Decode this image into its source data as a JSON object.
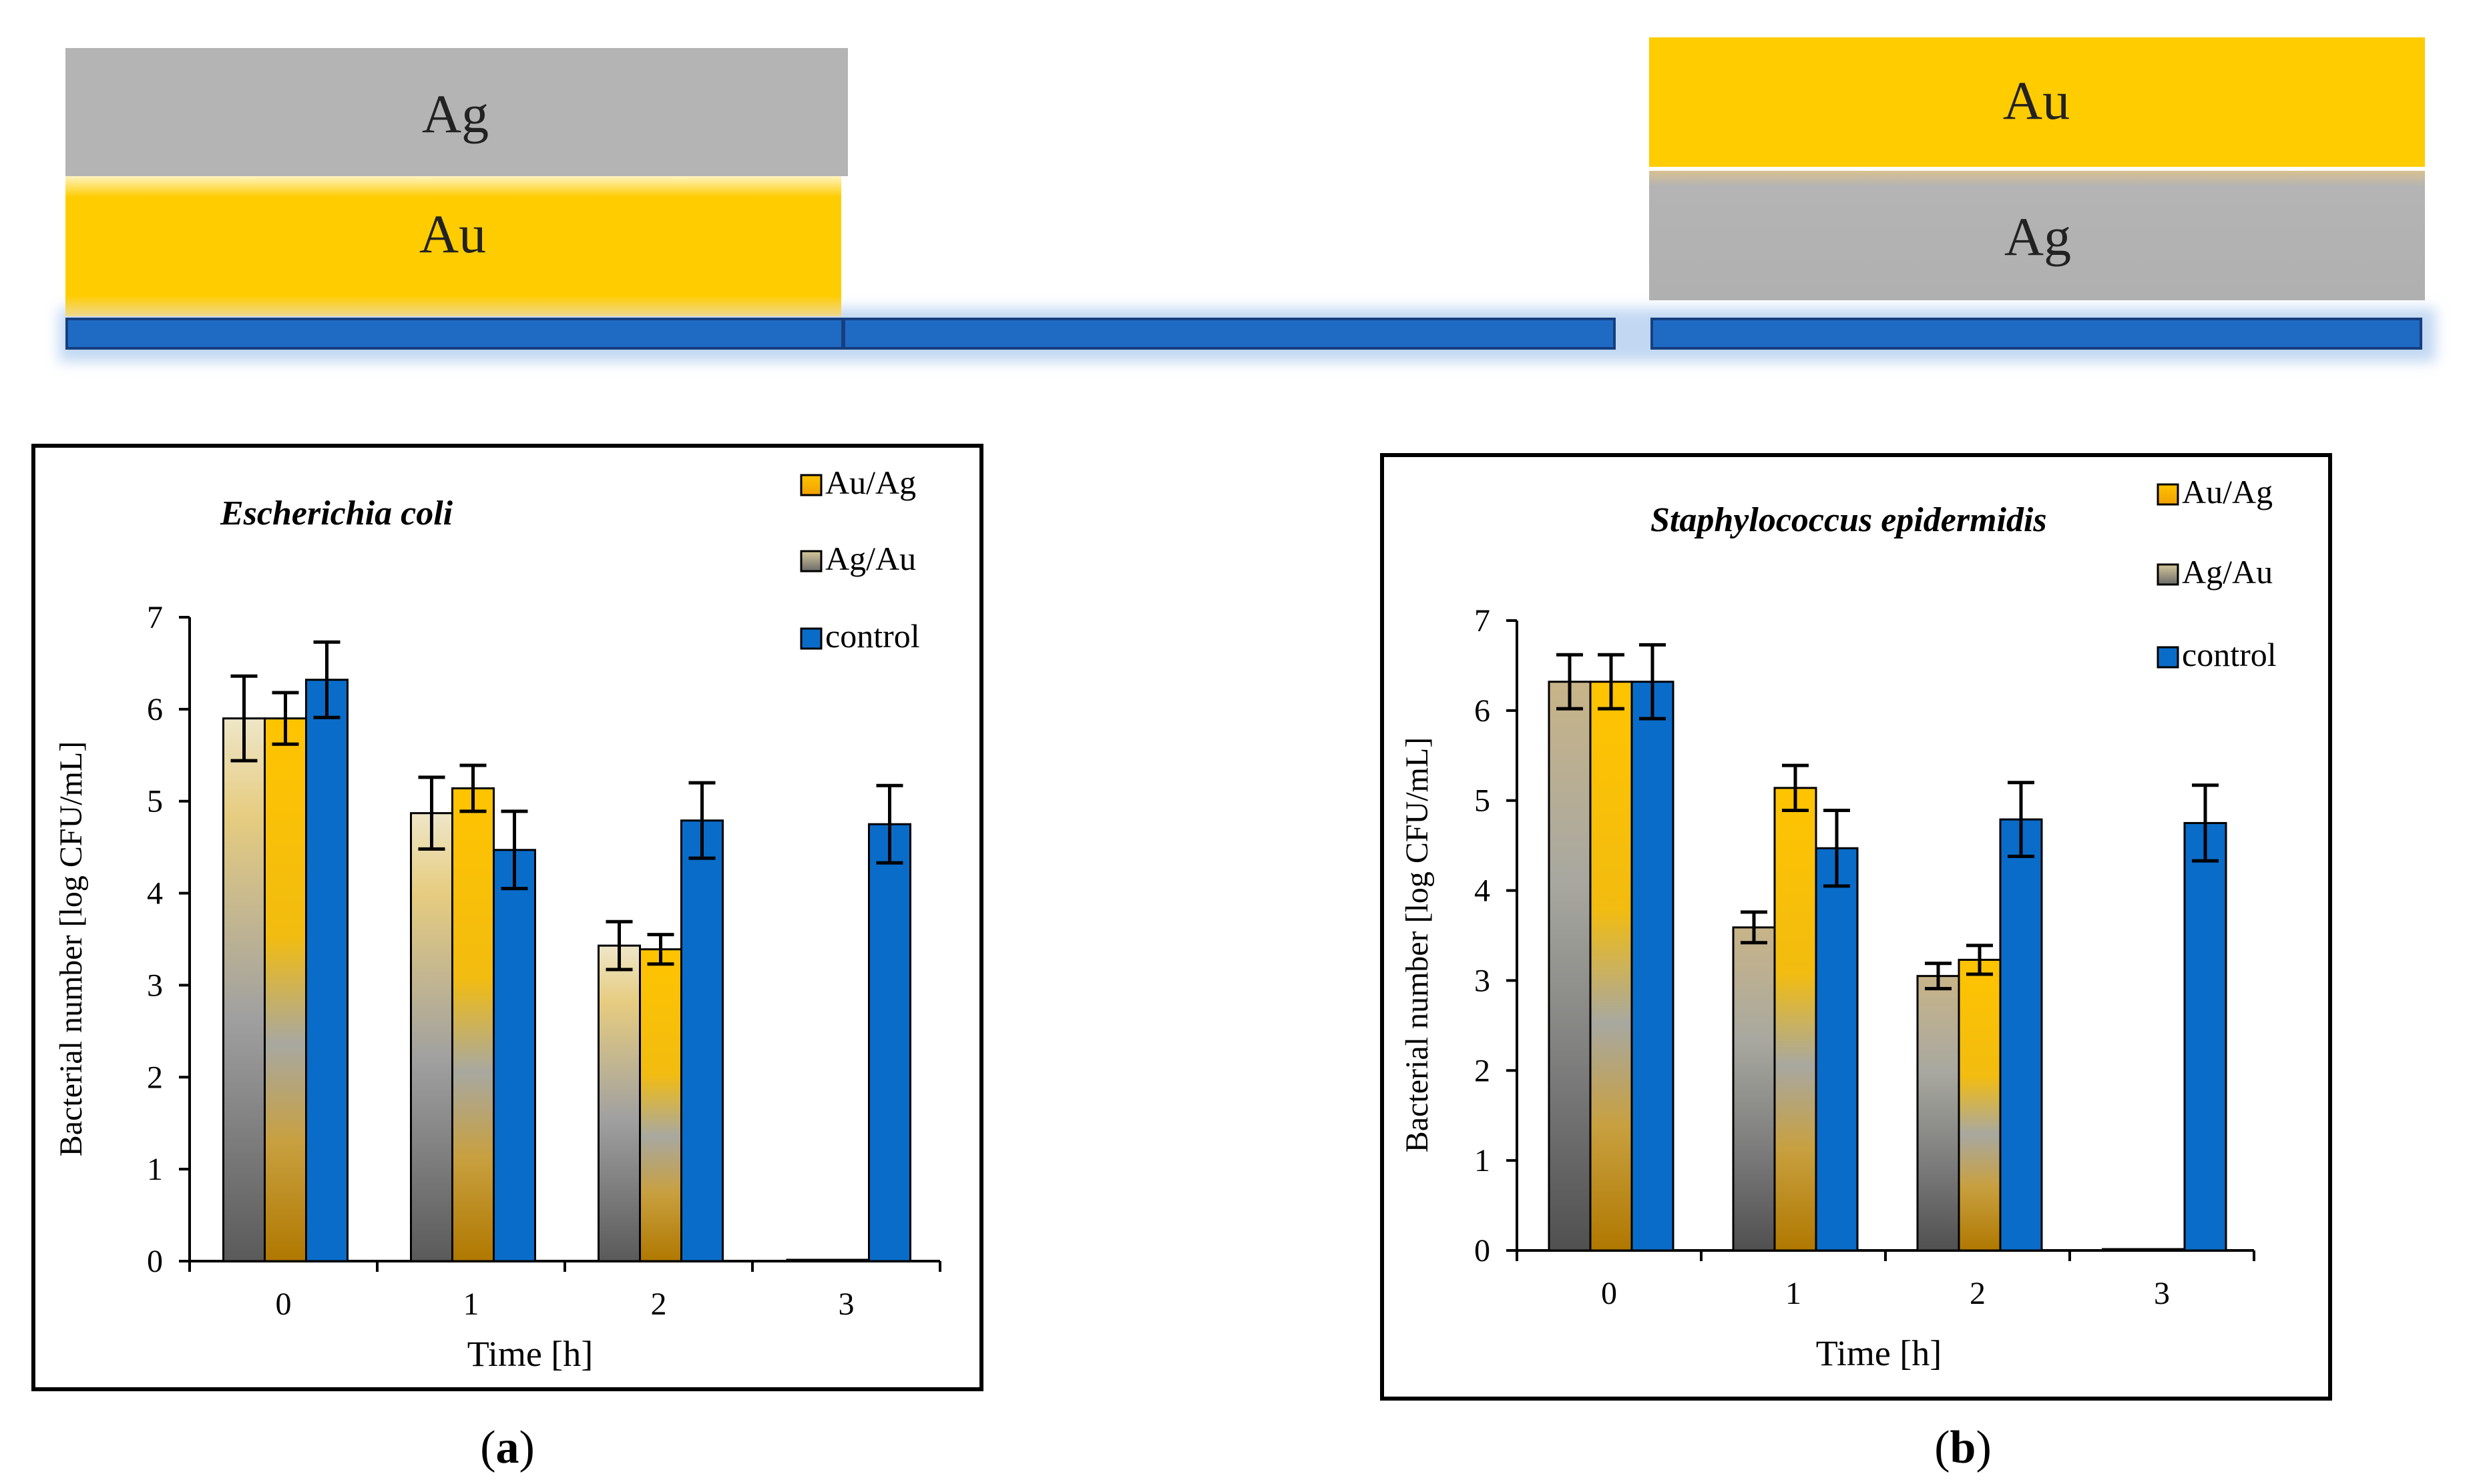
{
  "colors": {
    "gold": "#FFC800",
    "silver": "#B4B4B4",
    "blue": "#0A6CC9",
    "blue_dark": "#1F4E96",
    "axis": "#000000",
    "background": "#FFFFFF"
  },
  "schematic": {
    "left_stack": {
      "top": "Ag",
      "bottom": "Au"
    },
    "right_stack": {
      "top": "Au",
      "bottom": "Ag"
    }
  },
  "chart_data": [
    {
      "type": "bar",
      "panel_label": "a",
      "title": "Escherichia coli",
      "xlabel": "Time [h]",
      "ylabel": "Bacterial number [log CFU/mL]",
      "ylim": [
        0,
        7
      ],
      "yticks": [
        0,
        1,
        2,
        3,
        4,
        5,
        6,
        7
      ],
      "categories": [
        "0",
        "1",
        "2",
        "3"
      ],
      "series": [
        {
          "name": "Ag/Au",
          "style": "agau",
          "values": [
            5.9,
            4.87,
            3.43,
            0
          ],
          "errors": [
            0.46,
            0.39,
            0.26,
            0
          ]
        },
        {
          "name": "Au/Ag",
          "style": "auag",
          "values": [
            5.9,
            5.14,
            3.39,
            0
          ],
          "errors": [
            0.28,
            0.25,
            0.16,
            0
          ]
        },
        {
          "name": "control",
          "style": "control",
          "values": [
            6.32,
            4.47,
            4.79,
            4.75
          ],
          "errors": [
            0.41,
            0.42,
            0.41,
            0.42
          ]
        }
      ],
      "legend": [
        "Au/Ag",
        "Ag/Au",
        "control"
      ],
      "legend_position": "top-right"
    },
    {
      "type": "bar",
      "panel_label": "b",
      "title": "Staphylococcus epidermidis",
      "xlabel": "Time [h]",
      "ylabel": "Bacterial number [log CFU/mL]",
      "ylim": [
        0,
        7
      ],
      "yticks": [
        0,
        1,
        2,
        3,
        4,
        5,
        6,
        7
      ],
      "categories": [
        "0",
        "1",
        "2",
        "3"
      ],
      "series": [
        {
          "name": "Ag/Au",
          "style": "agau",
          "values": [
            6.32,
            3.59,
            3.05,
            0
          ],
          "errors": [
            0.3,
            0.17,
            0.14,
            0
          ]
        },
        {
          "name": "Au/Ag",
          "style": "auag",
          "values": [
            6.32,
            5.14,
            3.23,
            0
          ],
          "errors": [
            0.3,
            0.25,
            0.16,
            0
          ]
        },
        {
          "name": "control",
          "style": "control",
          "values": [
            6.32,
            4.47,
            4.79,
            4.75
          ],
          "errors": [
            0.41,
            0.42,
            0.41,
            0.42
          ]
        }
      ],
      "legend": [
        "Au/Ag",
        "Ag/Au",
        "control"
      ],
      "legend_position": "top-right"
    }
  ]
}
